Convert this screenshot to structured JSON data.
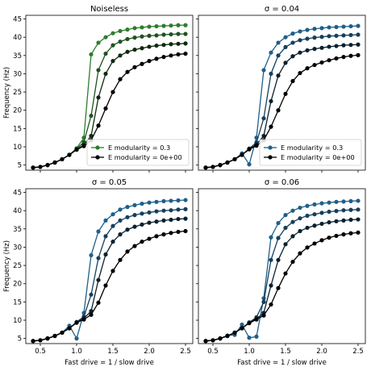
{
  "figure": {
    "panel_titles": [
      "Noiseless",
      "σ = 0.04",
      "σ = 0.05",
      "σ = 0.06"
    ],
    "xlabel": "Fast drive = 1 / slow drive",
    "ylabel": "Frequency (Hz)"
  },
  "chart_data": [
    {
      "type": "line",
      "title": "Noiseless",
      "xlabel": "",
      "ylabel": "Frequency (Hz)",
      "xlim": [
        0.3,
        2.6
      ],
      "ylim": [
        3.6,
        46
      ],
      "xticks": [],
      "xtick_labels": [],
      "yticks": [
        5,
        10,
        15,
        20,
        25,
        30,
        35,
        40,
        45
      ],
      "ytick_labels": [
        "5",
        "10",
        "15",
        "20",
        "25",
        "30",
        "35",
        "40",
        "45"
      ],
      "legend": {
        "position": "lower-right",
        "entries": [
          "E modularity = 0.3",
          "E modularity = 0e+00"
        ]
      },
      "colors": {
        "mod": "#2e7d2e",
        "zero": "#000000"
      },
      "x": [
        0.4,
        0.5,
        0.6,
        0.7,
        0.8,
        0.9,
        1.0,
        1.1,
        1.2,
        1.3,
        1.4,
        1.5,
        1.6,
        1.7,
        1.8,
        1.9,
        2.0,
        2.1,
        2.2,
        2.3,
        2.4,
        2.5
      ],
      "series": [
        {
          "name": "E modularity = 0.3",
          "values": [
            4.3,
            4.5,
            5.0,
            5.7,
            6.6,
            7.8,
            9.6,
            12.5,
            35.3,
            38.5,
            40.0,
            41.1,
            41.7,
            42.1,
            42.5,
            42.7,
            42.9,
            43.0,
            43.1,
            43.2,
            43.3,
            43.3
          ]
        },
        {
          "name": "",
          "values": [
            4.3,
            4.5,
            5.0,
            5.7,
            6.6,
            7.8,
            9.4,
            11.3,
            18.5,
            31.0,
            35.5,
            37.8,
            38.8,
            39.5,
            39.9,
            40.2,
            40.4,
            40.5,
            40.7,
            40.8,
            40.9,
            40.9
          ]
        },
        {
          "name": "",
          "values": [
            4.3,
            4.5,
            5.0,
            5.7,
            6.6,
            7.8,
            9.3,
            10.5,
            13.0,
            23.5,
            30.0,
            33.5,
            35.0,
            36.0,
            36.6,
            37.0,
            37.4,
            37.7,
            37.9,
            38.1,
            38.2,
            38.3
          ]
        },
        {
          "name": "E modularity = 0e+00",
          "values": [
            4.3,
            4.5,
            5.0,
            5.7,
            6.6,
            7.8,
            9.2,
            10.2,
            11.8,
            15.8,
            20.5,
            25.0,
            28.5,
            30.5,
            31.8,
            32.7,
            33.5,
            34.1,
            34.6,
            35.0,
            35.3,
            35.5
          ]
        }
      ]
    },
    {
      "type": "line",
      "title": "σ = 0.04",
      "xlabel": "",
      "ylabel": "",
      "xlim": [
        0.3,
        2.6
      ],
      "ylim": [
        3.6,
        46
      ],
      "xticks": [],
      "xtick_labels": [],
      "yticks": [],
      "ytick_labels": [],
      "legend": {
        "position": "lower-right",
        "entries": [
          "E modularity = 0.3",
          "E modularity = 0e+00"
        ]
      },
      "colors": {
        "mod": "#1f5f8b",
        "zero": "#000000"
      },
      "x": [
        0.4,
        0.5,
        0.6,
        0.7,
        0.8,
        0.9,
        1.0,
        1.1,
        1.2,
        1.3,
        1.4,
        1.5,
        1.6,
        1.7,
        1.8,
        1.9,
        2.0,
        2.1,
        2.2,
        2.3,
        2.4,
        2.5
      ],
      "series": [
        {
          "name": "E modularity = 0.3",
          "values": [
            4.3,
            4.5,
            5.0,
            5.7,
            6.6,
            8.2,
            5.2,
            12.5,
            31.0,
            35.8,
            38.5,
            40.0,
            41.0,
            41.6,
            42.0,
            42.3,
            42.5,
            42.7,
            42.8,
            42.9,
            43.0,
            43.1
          ]
        },
        {
          "name": "",
          "values": [
            4.3,
            4.5,
            5.0,
            5.7,
            6.6,
            7.8,
            9.5,
            11.2,
            17.8,
            30.0,
            35.0,
            37.3,
            38.5,
            39.2,
            39.6,
            39.9,
            40.1,
            40.3,
            40.4,
            40.5,
            40.6,
            40.7
          ]
        },
        {
          "name": "",
          "values": [
            4.3,
            4.5,
            5.0,
            5.7,
            6.6,
            7.8,
            9.4,
            10.6,
            13.0,
            22.5,
            29.5,
            33.0,
            34.8,
            35.8,
            36.4,
            36.8,
            37.1,
            37.4,
            37.6,
            37.8,
            37.9,
            38.0
          ]
        },
        {
          "name": "E modularity = 0e+00",
          "values": [
            4.3,
            4.5,
            5.0,
            5.7,
            6.6,
            7.8,
            9.3,
            10.3,
            11.8,
            15.5,
            20.0,
            24.5,
            28.0,
            30.2,
            31.5,
            32.4,
            33.1,
            33.7,
            34.2,
            34.6,
            34.9,
            35.1
          ]
        }
      ]
    },
    {
      "type": "line",
      "title": "σ = 0.05",
      "xlabel": "Fast drive = 1 / slow drive",
      "ylabel": "Frequency (Hz)",
      "xlim": [
        0.3,
        2.6
      ],
      "ylim": [
        3.6,
        46
      ],
      "xticks": [
        0.5,
        1.0,
        1.5,
        2.0,
        2.5
      ],
      "xtick_labels": [
        "0.5",
        "1.0",
        "1.5",
        "2.0",
        "2.5"
      ],
      "yticks": [
        5,
        10,
        15,
        20,
        25,
        30,
        35,
        40,
        45
      ],
      "ytick_labels": [
        "5",
        "10",
        "15",
        "20",
        "25",
        "30",
        "35",
        "40",
        "45"
      ],
      "legend": null,
      "colors": {
        "mod": "#1f5f8b",
        "zero": "#000000"
      },
      "x": [
        0.4,
        0.5,
        0.6,
        0.7,
        0.8,
        0.9,
        1.0,
        1.1,
        1.2,
        1.3,
        1.4,
        1.5,
        1.6,
        1.7,
        1.8,
        1.9,
        2.0,
        2.1,
        2.2,
        2.3,
        2.4,
        2.5
      ],
      "series": [
        {
          "name": "",
          "values": [
            4.3,
            4.5,
            5.0,
            5.7,
            6.6,
            8.5,
            5.0,
            12.0,
            27.8,
            34.3,
            37.3,
            39.0,
            40.3,
            41.0,
            41.5,
            41.9,
            42.2,
            42.4,
            42.6,
            42.7,
            42.8,
            42.9
          ]
        },
        {
          "name": "",
          "values": [
            4.3,
            4.5,
            5.0,
            5.7,
            6.6,
            7.8,
            9.5,
            11.0,
            17.0,
            27.0,
            33.0,
            35.8,
            37.3,
            38.2,
            38.8,
            39.2,
            39.5,
            39.8,
            40.0,
            40.1,
            40.3,
            40.4
          ]
        },
        {
          "name": "",
          "values": [
            4.3,
            4.5,
            5.0,
            5.7,
            6.6,
            7.8,
            9.4,
            10.5,
            12.5,
            21.0,
            28.0,
            31.5,
            33.5,
            34.8,
            35.6,
            36.2,
            36.7,
            37.0,
            37.3,
            37.5,
            37.7,
            37.8
          ]
        },
        {
          "name": "",
          "values": [
            4.3,
            4.5,
            5.0,
            5.7,
            6.6,
            7.8,
            9.3,
            10.2,
            11.5,
            14.8,
            19.5,
            23.5,
            26.5,
            28.8,
            30.3,
            31.5,
            32.3,
            33.0,
            33.5,
            33.9,
            34.2,
            34.4
          ]
        }
      ]
    },
    {
      "type": "line",
      "title": "σ = 0.06",
      "xlabel": "Fast drive = 1 / slow drive",
      "ylabel": "",
      "xlim": [
        0.3,
        2.6
      ],
      "ylim": [
        3.6,
        46
      ],
      "xticks": [
        0.5,
        1.0,
        1.5,
        2.0,
        2.5
      ],
      "xtick_labels": [
        "0.5",
        "1.0",
        "1.5",
        "2.0",
        "2.5"
      ],
      "yticks": [],
      "ytick_labels": [],
      "legend": null,
      "colors": {
        "mod": "#1f5f8b",
        "zero": "#000000"
      },
      "x": [
        0.4,
        0.5,
        0.6,
        0.7,
        0.8,
        0.9,
        1.0,
        1.1,
        1.2,
        1.3,
        1.4,
        1.5,
        1.6,
        1.7,
        1.8,
        1.9,
        2.0,
        2.1,
        2.2,
        2.3,
        2.4,
        2.5
      ],
      "series": [
        {
          "name": "",
          "values": [
            4.3,
            4.5,
            5.0,
            5.8,
            6.0,
            8.8,
            5.2,
            5.5,
            16.0,
            32.7,
            36.6,
            38.8,
            40.0,
            40.8,
            41.3,
            41.7,
            42.0,
            42.2,
            42.4,
            42.5,
            42.6,
            42.7
          ]
        },
        {
          "name": "",
          "values": [
            4.3,
            4.5,
            5.0,
            5.7,
            6.6,
            7.8,
            9.4,
            10.8,
            15.0,
            26.5,
            32.5,
            35.3,
            36.9,
            37.9,
            38.6,
            39.0,
            39.4,
            39.7,
            39.9,
            40.1,
            40.2,
            40.3
          ]
        },
        {
          "name": "",
          "values": [
            4.3,
            4.5,
            5.0,
            5.7,
            6.6,
            7.8,
            9.3,
            10.4,
            12.0,
            19.5,
            26.5,
            30.8,
            33.0,
            34.4,
            35.3,
            35.9,
            36.4,
            36.8,
            37.1,
            37.3,
            37.5,
            37.6
          ]
        },
        {
          "name": "",
          "values": [
            4.3,
            4.5,
            5.0,
            5.7,
            6.6,
            7.8,
            9.2,
            10.2,
            11.3,
            14.3,
            18.8,
            22.8,
            26.0,
            28.3,
            29.9,
            31.0,
            31.9,
            32.6,
            33.1,
            33.5,
            33.8,
            34.0
          ]
        }
      ]
    }
  ]
}
